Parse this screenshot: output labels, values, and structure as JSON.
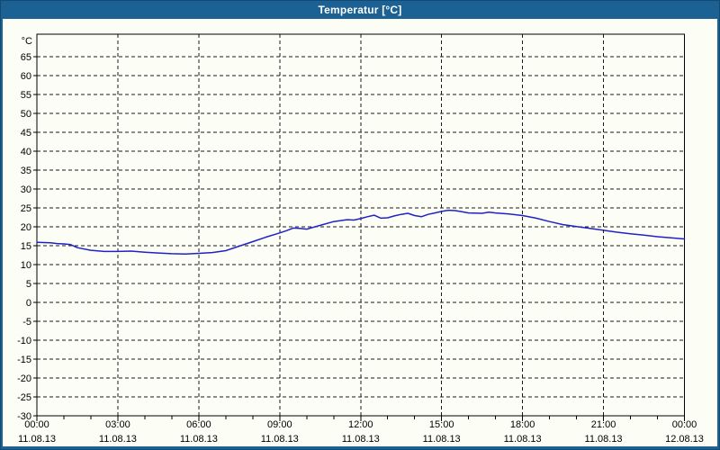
{
  "window": {
    "title": "Temperatur [°C]"
  },
  "colors": {
    "titlebar_bg": "#1c6193",
    "titlebar_text": "#ffffff",
    "window_bg": "#fcfef5",
    "plot_border": "#000000",
    "grid": "#1a1a1a",
    "label_text": "#000000",
    "line": "#2121c8"
  },
  "chart_data": {
    "type": "line",
    "title": "Temperatur [°C]",
    "ylabel": "°C",
    "unit_label": "°C",
    "ylim": [
      -30,
      71
    ],
    "xlim_hours": [
      0,
      24
    ],
    "grid": "dashed",
    "legend": "none",
    "y_ticks": [
      65,
      60,
      55,
      50,
      45,
      40,
      35,
      30,
      25,
      20,
      15,
      10,
      5,
      0,
      -5,
      -10,
      -15,
      -20,
      -25,
      -30
    ],
    "x_ticks": [
      {
        "hour": 0,
        "time": "00:00",
        "date": "11.08.13"
      },
      {
        "hour": 3,
        "time": "03:00",
        "date": "11.08.13"
      },
      {
        "hour": 6,
        "time": "06:00",
        "date": "11.08.13"
      },
      {
        "hour": 9,
        "time": "09:00",
        "date": "11.08.13"
      },
      {
        "hour": 12,
        "time": "12:00",
        "date": "11.08.13"
      },
      {
        "hour": 15,
        "time": "15:00",
        "date": "11.08.13"
      },
      {
        "hour": 18,
        "time": "18:00",
        "date": "11.08.13"
      },
      {
        "hour": 21,
        "time": "21:00",
        "date": "11.08.13"
      },
      {
        "hour": 24,
        "time": "00:00",
        "date": "12.08.13"
      }
    ],
    "series": [
      {
        "name": "Temperatur",
        "color": "#2121c8",
        "x_hours": [
          0,
          0.5,
          0.75,
          1,
          1.25,
          1.5,
          2,
          2.5,
          3,
          3.5,
          4,
          4.5,
          5,
          5.5,
          6,
          6.5,
          7,
          7.5,
          8,
          8.5,
          9,
          9.25,
          9.5,
          9.75,
          10,
          10.5,
          11,
          11.5,
          11.75,
          12,
          12.25,
          12.5,
          12.75,
          13,
          13.25,
          13.5,
          13.75,
          14,
          14.25,
          14.5,
          14.75,
          15,
          15.25,
          15.5,
          15.75,
          16,
          16.5,
          16.75,
          17,
          17.5,
          18,
          18.5,
          19,
          19.5,
          20,
          20.5,
          21,
          21.5,
          22,
          22.5,
          23,
          23.5,
          24
        ],
        "values": [
          15.9,
          15.8,
          15.6,
          15.5,
          15.3,
          14.5,
          13.8,
          13.5,
          13.5,
          13.6,
          13.3,
          13.1,
          12.9,
          12.8,
          13.0,
          13.2,
          13.7,
          14.9,
          16.1,
          17.3,
          18.4,
          19.0,
          19.7,
          19.6,
          19.4,
          20.4,
          21.4,
          21.9,
          21.8,
          22.2,
          22.7,
          23.1,
          22.3,
          22.4,
          22.9,
          23.3,
          23.6,
          23.0,
          22.7,
          23.3,
          23.7,
          24.1,
          24.4,
          24.3,
          24.0,
          23.7,
          23.6,
          23.9,
          23.7,
          23.4,
          23.0,
          22.3,
          21.4,
          20.6,
          20.1,
          19.6,
          19.1,
          18.6,
          18.2,
          17.8,
          17.4,
          17.1,
          16.8
        ]
      }
    ]
  }
}
